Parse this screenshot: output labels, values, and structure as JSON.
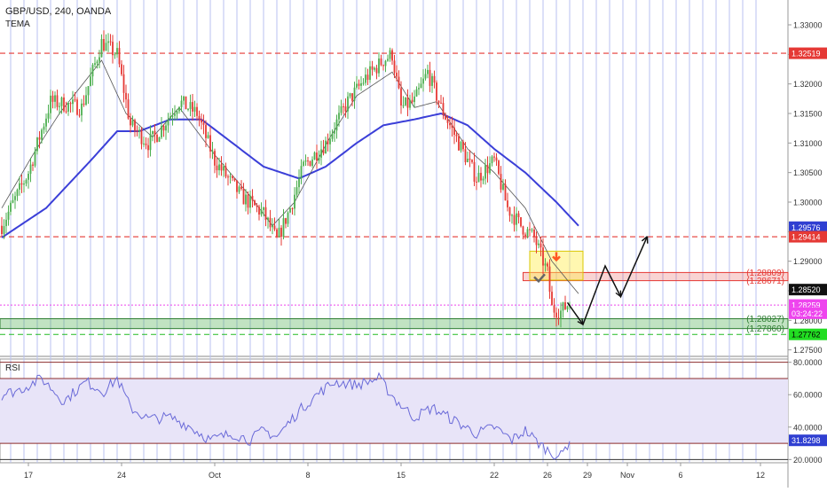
{
  "header": {
    "symbol_line": "GBP/USD, 240, OANDA",
    "indicator_label": "TEMA"
  },
  "rsi_panel": {
    "label": "RSI",
    "axis_ticks": [
      "80.0000",
      "60.0000",
      "40.0000",
      "20.0000"
    ],
    "current_value": "31.8298",
    "levels": [
      70,
      30
    ]
  },
  "price_axis": {
    "ticks": [
      "1.33000",
      "1.32500",
      "1.32000",
      "1.31500",
      "1.31000",
      "1.30500",
      "1.30000",
      "1.29500",
      "1.29000",
      "1.28500",
      "1.28000",
      "1.27500"
    ],
    "tick_values": [
      1.33,
      1.325,
      1.32,
      1.315,
      1.31,
      1.305,
      1.3,
      1.295,
      1.29,
      1.285,
      1.28,
      1.275
    ],
    "range": [
      1.2742,
      1.3342
    ]
  },
  "price_badges": [
    {
      "text": "1.32519",
      "value": 1.32519,
      "bg": "#e53935",
      "fg": "#ffffff"
    },
    {
      "text": "1.29576",
      "value": 1.29576,
      "bg": "#2f3fd1",
      "fg": "#ffffff"
    },
    {
      "text": "1.29414",
      "value": 1.29414,
      "bg": "#e53935",
      "fg": "#ffffff"
    },
    {
      "text": "1.28520",
      "value": 1.2852,
      "bg": "#111111",
      "fg": "#ffffff"
    },
    {
      "text": "1.28259",
      "value": 1.28259,
      "bg": "#ee44ee",
      "fg": "#ffffff"
    },
    {
      "text": "03:24:22",
      "value": 1.2812,
      "bg": "#ee44ee",
      "fg": "#ffffff"
    },
    {
      "text": "1.27762",
      "value": 1.27762,
      "bg": "#22dd22",
      "fg": "#000000"
    }
  ],
  "zone_labels": [
    {
      "text": "(1.28809)",
      "value": 1.28809,
      "color": "#e53935"
    },
    {
      "text": "(1.28671)",
      "value": 1.28671,
      "color": "#e53935"
    },
    {
      "text": "(1.28027)",
      "value": 1.28027,
      "color": "#2e7d32"
    },
    {
      "text": "(1.27860)",
      "value": 1.2786,
      "color": "#2e7d32"
    }
  ],
  "time_axis": [
    {
      "label": "17",
      "index": 12
    },
    {
      "label": "24",
      "index": 54
    },
    {
      "label": "Oct",
      "index": 96
    },
    {
      "label": "8",
      "index": 138
    },
    {
      "label": "15",
      "index": 180
    },
    {
      "label": "22",
      "index": 222
    },
    {
      "label": "26",
      "index": 246
    },
    {
      "label": "29",
      "index": 264
    },
    {
      "label": "Nov",
      "index": 282
    },
    {
      "label": "6",
      "index": 306
    },
    {
      "label": "12",
      "index": 342
    }
  ],
  "levels": {
    "red_dashed": [
      1.32519,
      1.29414
    ],
    "magenta_dotted": 1.28259,
    "green_dashed": 1.27762
  },
  "zones": {
    "red_box": [
      1.28671,
      1.28809
    ],
    "green_box": [
      1.2786,
      1.28027
    ],
    "yellow_box": {
      "from_index": 238,
      "to_index": 256,
      "low": 1.2868,
      "high": 1.2917
    }
  },
  "forecast_path": [
    {
      "i": 255,
      "p": 1.283
    },
    {
      "i": 262,
      "p": 1.2793
    },
    {
      "i": 272,
      "p": 1.2892
    },
    {
      "i": 279,
      "p": 1.284
    },
    {
      "i": 291,
      "p": 1.2942
    }
  ],
  "colors": {
    "up_candle": "#4caf50",
    "down_candle": "#e53935",
    "tema": "#555555",
    "ma": "#3b3fd8",
    "rsi_line": "#6a6ad8",
    "rsi_fill": "#e8e4f8",
    "vertical_grid": "#b9c2f0"
  },
  "chart_data": {
    "type": "candlestick",
    "title": "GBP/USD, 240, OANDA",
    "timeframe": "240",
    "xlabel": "",
    "ylabel": "",
    "ylim": [
      1.2742,
      1.3342
    ],
    "x_ticks": [
      "17",
      "24",
      "Oct",
      "8",
      "15",
      "22",
      "26",
      "29",
      "Nov",
      "6",
      "12"
    ],
    "key_points": [
      {
        "index": 0,
        "price": 1.296
      },
      {
        "index": 12,
        "price": 1.305
      },
      {
        "index": 22,
        "price": 1.317
      },
      {
        "index": 36,
        "price": 1.316
      },
      {
        "index": 45,
        "price": 1.327
      },
      {
        "index": 52,
        "price": 1.325
      },
      {
        "index": 58,
        "price": 1.313
      },
      {
        "index": 66,
        "price": 1.31
      },
      {
        "index": 70,
        "price": 1.3115
      },
      {
        "index": 80,
        "price": 1.317
      },
      {
        "index": 88,
        "price": 1.315
      },
      {
        "index": 96,
        "price": 1.307
      },
      {
        "index": 108,
        "price": 1.301
      },
      {
        "index": 118,
        "price": 1.298
      },
      {
        "index": 124,
        "price": 1.2935
      },
      {
        "index": 130,
        "price": 1.299
      },
      {
        "index": 136,
        "price": 1.306
      },
      {
        "index": 146,
        "price": 1.31
      },
      {
        "index": 156,
        "price": 1.317
      },
      {
        "index": 164,
        "price": 1.321
      },
      {
        "index": 172,
        "price": 1.324
      },
      {
        "index": 176,
        "price": 1.325
      },
      {
        "index": 180,
        "price": 1.316
      },
      {
        "index": 186,
        "price": 1.317
      },
      {
        "index": 192,
        "price": 1.322
      },
      {
        "index": 198,
        "price": 1.316
      },
      {
        "index": 206,
        "price": 1.31
      },
      {
        "index": 214,
        "price": 1.304
      },
      {
        "index": 222,
        "price": 1.307
      },
      {
        "index": 228,
        "price": 1.299
      },
      {
        "index": 234,
        "price": 1.296
      },
      {
        "index": 240,
        "price": 1.294
      },
      {
        "index": 246,
        "price": 1.288
      },
      {
        "index": 248,
        "price": 1.282
      },
      {
        "index": 252,
        "price": 1.2815
      },
      {
        "index": 256,
        "price": 1.283
      }
    ],
    "tema_key_points": [
      {
        "index": 0,
        "price": 1.299
      },
      {
        "index": 14,
        "price": 1.308
      },
      {
        "index": 26,
        "price": 1.315
      },
      {
        "index": 45,
        "price": 1.324
      },
      {
        "index": 56,
        "price": 1.315
      },
      {
        "index": 68,
        "price": 1.311
      },
      {
        "index": 80,
        "price": 1.316
      },
      {
        "index": 96,
        "price": 1.308
      },
      {
        "index": 112,
        "price": 1.301
      },
      {
        "index": 122,
        "price": 1.296
      },
      {
        "index": 132,
        "price": 1.3
      },
      {
        "index": 148,
        "price": 1.311
      },
      {
        "index": 160,
        "price": 1.318
      },
      {
        "index": 176,
        "price": 1.322
      },
      {
        "index": 186,
        "price": 1.316
      },
      {
        "index": 196,
        "price": 1.317
      },
      {
        "index": 210,
        "price": 1.309
      },
      {
        "index": 222,
        "price": 1.305
      },
      {
        "index": 236,
        "price": 1.299
      },
      {
        "index": 248,
        "price": 1.29
      },
      {
        "index": 260,
        "price": 1.2845
      }
    ],
    "ma_key_points": [
      {
        "index": 0,
        "price": 1.294
      },
      {
        "index": 20,
        "price": 1.299
      },
      {
        "index": 40,
        "price": 1.307
      },
      {
        "index": 52,
        "price": 1.312
      },
      {
        "index": 62,
        "price": 1.312
      },
      {
        "index": 76,
        "price": 1.314
      },
      {
        "index": 90,
        "price": 1.314
      },
      {
        "index": 104,
        "price": 1.31
      },
      {
        "index": 118,
        "price": 1.306
      },
      {
        "index": 134,
        "price": 1.304
      },
      {
        "index": 146,
        "price": 1.306
      },
      {
        "index": 160,
        "price": 1.31
      },
      {
        "index": 172,
        "price": 1.313
      },
      {
        "index": 186,
        "price": 1.314
      },
      {
        "index": 198,
        "price": 1.315
      },
      {
        "index": 210,
        "price": 1.313
      },
      {
        "index": 222,
        "price": 1.309
      },
      {
        "index": 236,
        "price": 1.305
      },
      {
        "index": 250,
        "price": 1.3
      },
      {
        "index": 260,
        "price": 1.296
      }
    ],
    "rsi": {
      "ylim": [
        18,
        82
      ],
      "levels": [
        70,
        30
      ],
      "current": 31.8298,
      "key_points": [
        {
          "index": 0,
          "value": 60
        },
        {
          "index": 8,
          "value": 63
        },
        {
          "index": 18,
          "value": 70
        },
        {
          "index": 28,
          "value": 56
        },
        {
          "index": 38,
          "value": 68
        },
        {
          "index": 46,
          "value": 62
        },
        {
          "index": 52,
          "value": 70
        },
        {
          "index": 58,
          "value": 52
        },
        {
          "index": 66,
          "value": 45
        },
        {
          "index": 76,
          "value": 46
        },
        {
          "index": 84,
          "value": 41
        },
        {
          "index": 94,
          "value": 32
        },
        {
          "index": 104,
          "value": 36
        },
        {
          "index": 112,
          "value": 32
        },
        {
          "index": 118,
          "value": 38
        },
        {
          "index": 124,
          "value": 34
        },
        {
          "index": 134,
          "value": 50
        },
        {
          "index": 142,
          "value": 60
        },
        {
          "index": 150,
          "value": 68
        },
        {
          "index": 160,
          "value": 66
        },
        {
          "index": 170,
          "value": 70
        },
        {
          "index": 178,
          "value": 56
        },
        {
          "index": 186,
          "value": 46
        },
        {
          "index": 194,
          "value": 52
        },
        {
          "index": 204,
          "value": 44
        },
        {
          "index": 214,
          "value": 36
        },
        {
          "index": 222,
          "value": 40
        },
        {
          "index": 230,
          "value": 32
        },
        {
          "index": 236,
          "value": 38
        },
        {
          "index": 242,
          "value": 30
        },
        {
          "index": 248,
          "value": 24
        },
        {
          "index": 252,
          "value": 22
        },
        {
          "index": 256,
          "value": 31.8
        }
      ]
    }
  }
}
